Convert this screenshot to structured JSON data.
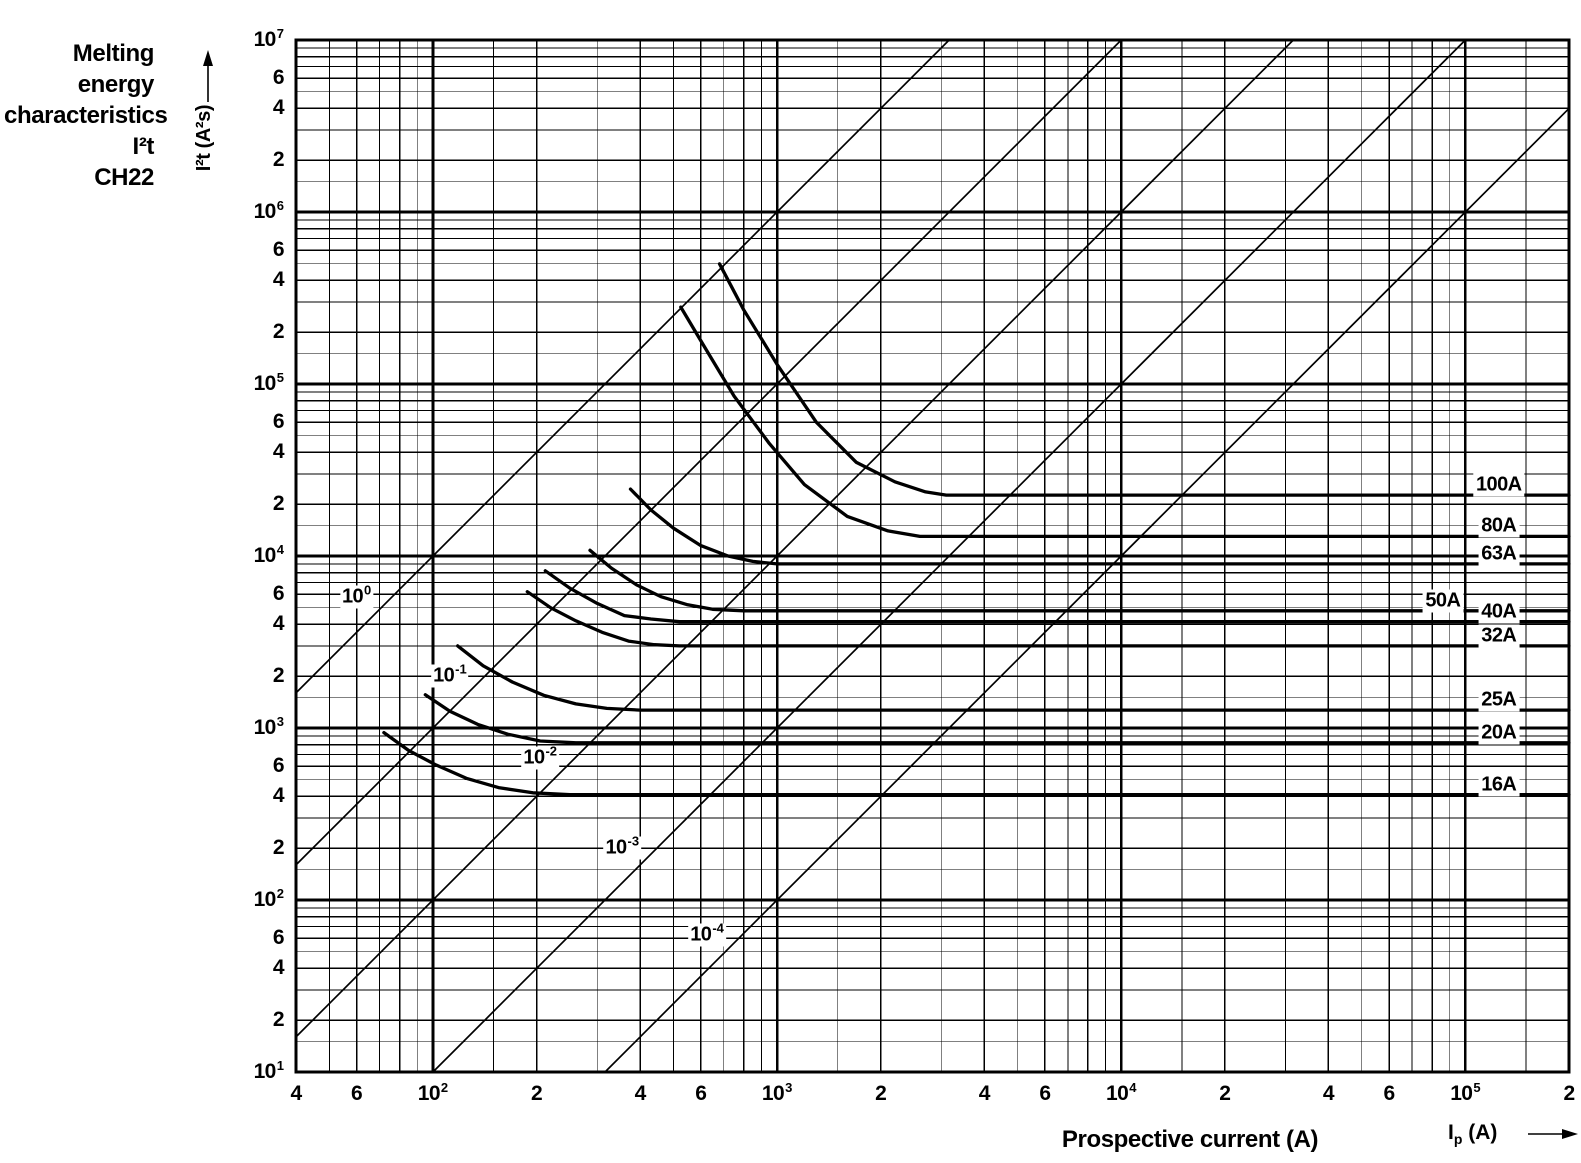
{
  "page": {
    "title_lines": [
      "Melting energy",
      "characteristics I²t",
      "CH22"
    ]
  },
  "chart_data": {
    "type": "line",
    "title": "Melting energy characteristics I²t CH22",
    "xlabel": "Prospective current (A)",
    "xlabel_symbol": {
      "letter": "I",
      "sub": "p",
      "unit": "(A)"
    },
    "ylabel": "I²t (A²s)",
    "xlim": [
      40,
      200000
    ],
    "ylim": [
      10,
      10000000
    ],
    "grid": "full log-log decade grid, black on white",
    "legend_position": "labels on curves, right side",
    "accent_color": "#000000",
    "x_ticks": [
      {
        "v": 40,
        "t": "4"
      },
      {
        "v": 60,
        "t": "6"
      },
      {
        "v": 100,
        "t": "10^2"
      },
      {
        "v": 200,
        "t": "2"
      },
      {
        "v": 400,
        "t": "4"
      },
      {
        "v": 600,
        "t": "6"
      },
      {
        "v": 1000,
        "t": "10^3"
      },
      {
        "v": 2000,
        "t": "2"
      },
      {
        "v": 4000,
        "t": "4"
      },
      {
        "v": 6000,
        "t": "6"
      },
      {
        "v": 10000,
        "t": "10^4"
      },
      {
        "v": 20000,
        "t": "2"
      },
      {
        "v": 40000,
        "t": "4"
      },
      {
        "v": 60000,
        "t": "6"
      },
      {
        "v": 100000,
        "t": "10^5"
      },
      {
        "v": 200000,
        "t": "2"
      }
    ],
    "y_ticks": [
      {
        "v": 10000000,
        "t": "10^7"
      },
      {
        "v": 6000000,
        "t": "6"
      },
      {
        "v": 4000000,
        "t": "4"
      },
      {
        "v": 2000000,
        "t": "2"
      },
      {
        "v": 1000000,
        "t": "10^6"
      },
      {
        "v": 600000,
        "t": "6"
      },
      {
        "v": 400000,
        "t": "4"
      },
      {
        "v": 200000,
        "t": "2"
      },
      {
        "v": 100000,
        "t": "10^5"
      },
      {
        "v": 60000,
        "t": "6"
      },
      {
        "v": 40000,
        "t": "4"
      },
      {
        "v": 20000,
        "t": "2"
      },
      {
        "v": 10000,
        "t": "10^4"
      },
      {
        "v": 6000,
        "t": "6"
      },
      {
        "v": 4000,
        "t": "4"
      },
      {
        "v": 2000,
        "t": "2"
      },
      {
        "v": 1000,
        "t": "10^3"
      },
      {
        "v": 600,
        "t": "6"
      },
      {
        "v": 400,
        "t": "4"
      },
      {
        "v": 200,
        "t": "2"
      },
      {
        "v": 100,
        "t": "10^2"
      },
      {
        "v": 60,
        "t": "6"
      },
      {
        "v": 40,
        "t": "4"
      },
      {
        "v": 20,
        "t": "2"
      },
      {
        "v": 10,
        "t": "10^1"
      }
    ],
    "time_lines_note": "diagonals of constant pre-arcing time t (s): I²t = t·I²",
    "time_lines": [
      {
        "t": 1,
        "base": "10",
        "exp": "0",
        "label_I": 60
      },
      {
        "t": 0.1,
        "base": "10",
        "exp": "-1",
        "label_I": 112
      },
      {
        "t": 0.01,
        "base": "10",
        "exp": "-2",
        "label_I": 205
      },
      {
        "t": 0.001,
        "base": "10",
        "exp": "-3",
        "label_I": 355
      },
      {
        "t": 0.0001,
        "base": "10",
        "exp": "-4",
        "label_I": 626
      }
    ],
    "fuses": [
      {
        "rating": "100A",
        "total_i2t": 22600,
        "label_I": 125000,
        "points": [
          [
            680,
            500000
          ],
          [
            800,
            270000
          ],
          [
            1000,
            130000
          ],
          [
            1300,
            60000
          ],
          [
            1700,
            35000
          ],
          [
            2200,
            27000
          ],
          [
            2700,
            23600
          ],
          [
            3100,
            22600
          ]
        ]
      },
      {
        "rating": "80A",
        "total_i2t": 13000,
        "label_I": 125000,
        "points": [
          [
            525,
            280000
          ],
          [
            620,
            160000
          ],
          [
            750,
            85000
          ],
          [
            950,
            45000
          ],
          [
            1200,
            26000
          ],
          [
            1600,
            17000
          ],
          [
            2100,
            14000
          ],
          [
            2600,
            13000
          ]
        ]
      },
      {
        "rating": "63A",
        "total_i2t": 9000,
        "label_I": 125000,
        "points": [
          [
            375,
            24500
          ],
          [
            430,
            18500
          ],
          [
            500,
            14500
          ],
          [
            600,
            11500
          ],
          [
            720,
            10000
          ],
          [
            850,
            9300
          ],
          [
            1000,
            9000
          ]
        ]
      },
      {
        "rating": "50A",
        "total_i2t": 4800,
        "label_I": 86000,
        "points": [
          [
            286,
            10800
          ],
          [
            330,
            8500
          ],
          [
            390,
            6800
          ],
          [
            460,
            5800
          ],
          [
            550,
            5200
          ],
          [
            650,
            4900
          ],
          [
            800,
            4800
          ]
        ]
      },
      {
        "rating": "40A",
        "total_i2t": 4150,
        "label_I": 125000,
        "points": [
          [
            212,
            8200
          ],
          [
            250,
            6500
          ],
          [
            300,
            5300
          ],
          [
            360,
            4500
          ],
          [
            430,
            4300
          ],
          [
            520,
            4150
          ]
        ]
      },
      {
        "rating": "32A",
        "total_i2t": 3000,
        "label_I": 125000,
        "points": [
          [
            188,
            6200
          ],
          [
            220,
            5000
          ],
          [
            260,
            4200
          ],
          [
            310,
            3600
          ],
          [
            370,
            3200
          ],
          [
            440,
            3050
          ],
          [
            520,
            3000
          ]
        ]
      },
      {
        "rating": "25A",
        "total_i2t": 1270,
        "label_I": 125000,
        "points": [
          [
            118,
            3000
          ],
          [
            140,
            2300
          ],
          [
            170,
            1850
          ],
          [
            210,
            1550
          ],
          [
            260,
            1380
          ],
          [
            320,
            1300
          ],
          [
            400,
            1270
          ]
        ]
      },
      {
        "rating": "20A",
        "total_i2t": 820,
        "label_I": 125000,
        "points": [
          [
            95,
            1560
          ],
          [
            112,
            1250
          ],
          [
            135,
            1050
          ],
          [
            165,
            920
          ],
          [
            205,
            840
          ],
          [
            260,
            820
          ]
        ]
      },
      {
        "rating": "16A",
        "total_i2t": 410,
        "label_I": 125000,
        "points": [
          [
            72,
            940
          ],
          [
            85,
            740
          ],
          [
            102,
            610
          ],
          [
            125,
            510
          ],
          [
            155,
            450
          ],
          [
            195,
            420
          ],
          [
            250,
            410
          ]
        ]
      }
    ]
  }
}
